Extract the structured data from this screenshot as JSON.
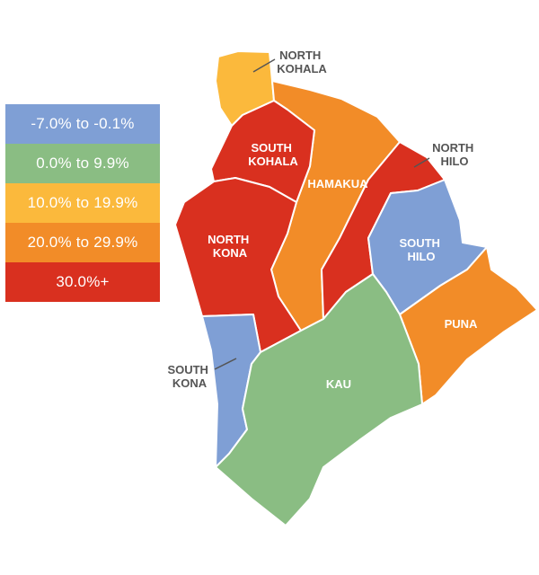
{
  "legend": {
    "items": [
      {
        "label": "-7.0% to -0.1%",
        "color": "#7f9fd5"
      },
      {
        "label": "0.0% to 9.9%",
        "color": "#8abd83"
      },
      {
        "label": "10.0% to 19.9%",
        "color": "#fbb93c"
      },
      {
        "label": "20.0% to 29.9%",
        "color": "#f28c28"
      },
      {
        "label": "30.0%+",
        "color": "#d9301f"
      }
    ]
  },
  "regions": [
    {
      "key": "north_kohala",
      "line1": "NORTH",
      "line2": "KOHALA",
      "category": "10.0% to 19.9%"
    },
    {
      "key": "south_kohala",
      "line1": "SOUTH",
      "line2": "KOHALA",
      "category": "30.0%+"
    },
    {
      "key": "hamakua",
      "line1": "HAMAKUA",
      "line2": "",
      "category": "20.0% to 29.9%"
    },
    {
      "key": "north_hilo",
      "line1": "NORTH",
      "line2": "HILO",
      "category": "30.0%+"
    },
    {
      "key": "north_kona",
      "line1": "NORTH",
      "line2": "KONA",
      "category": "30.0%+"
    },
    {
      "key": "south_hilo",
      "line1": "SOUTH",
      "line2": "HILO",
      "category": "-7.0% to -0.1%"
    },
    {
      "key": "puna",
      "line1": "PUNA",
      "line2": "",
      "category": "20.0% to 29.9%"
    },
    {
      "key": "south_kona",
      "line1": "SOUTH",
      "line2": "KONA",
      "category": "-7.0% to -0.1%"
    },
    {
      "key": "kau",
      "line1": "KAU",
      "line2": "",
      "category": "0.0% to 9.9%"
    }
  ]
}
